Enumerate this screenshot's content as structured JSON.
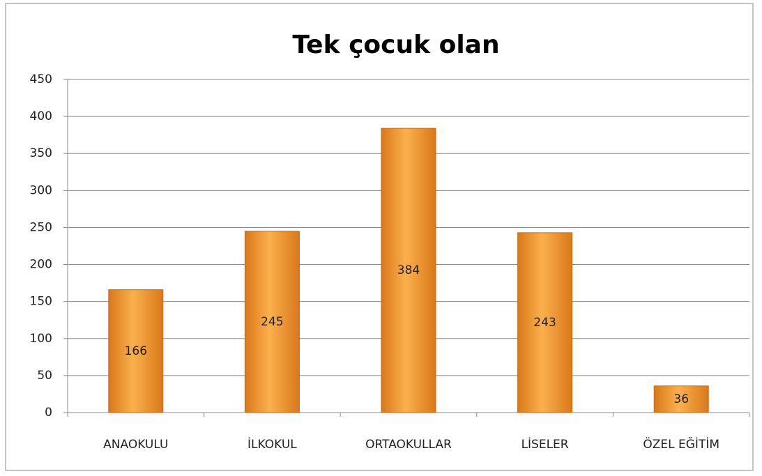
{
  "chart_data": {
    "type": "bar",
    "title": "Tek çocuk olan",
    "categories": [
      "ANAOKULU",
      "İLKOKUL",
      "ORTAOKULLAR",
      "LİSELER",
      "ÖZEL EĞİTİM"
    ],
    "values": [
      166,
      245,
      384,
      243,
      36
    ],
    "color": "#f39a2e",
    "ylim": [
      0,
      450
    ],
    "yticks": [
      0,
      50,
      100,
      150,
      200,
      250,
      300,
      350,
      400,
      450
    ],
    "grid": true
  }
}
